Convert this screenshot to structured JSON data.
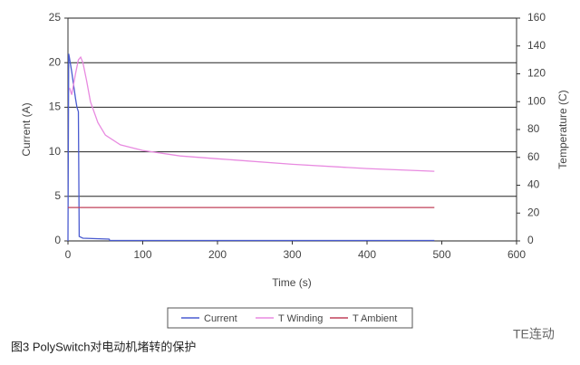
{
  "chart_data": {
    "type": "line",
    "xlabel": "Time (s)",
    "ylabel": "Current (A)",
    "y2label": "Temperature (C)",
    "xlim": [
      0,
      600
    ],
    "xticks": [
      0,
      100,
      200,
      300,
      400,
      500,
      600
    ],
    "ylim": [
      0,
      25
    ],
    "yticks": [
      0,
      5,
      10,
      15,
      20,
      25
    ],
    "y2lim": [
      0,
      160
    ],
    "y2ticks": [
      0,
      20,
      40,
      60,
      80,
      100,
      120,
      140,
      160
    ],
    "grid": true,
    "legend": "bottom",
    "series": [
      {
        "name": "Current",
        "color": "#4a5bd0",
        "x": [
          0,
          1,
          2,
          5,
          10,
          12,
          14,
          15,
          20,
          55,
          56,
          100,
          490
        ],
        "values": [
          0,
          21,
          20.5,
          19,
          16,
          15,
          14.5,
          0.5,
          0.3,
          0.2,
          0.05,
          0.05,
          0.05
        ]
      },
      {
        "name": "T Winding",
        "color": "#e88ae0",
        "axis": "y2",
        "x": [
          2,
          5,
          10,
          14,
          17,
          20,
          25,
          30,
          40,
          50,
          70,
          100,
          150,
          200,
          300,
          400,
          490
        ],
        "values": [
          110,
          105,
          120,
          130,
          132,
          128,
          115,
          100,
          85,
          76,
          69,
          65,
          61,
          59,
          55,
          52,
          50
        ]
      },
      {
        "name": "T Ambient",
        "color": "#c0405a",
        "axis": "y2",
        "x": [
          0,
          490
        ],
        "values": [
          24,
          24
        ]
      }
    ]
  },
  "caption": "图3  PolySwitch对电动机堵转的保护",
  "watermark": "TE连动"
}
